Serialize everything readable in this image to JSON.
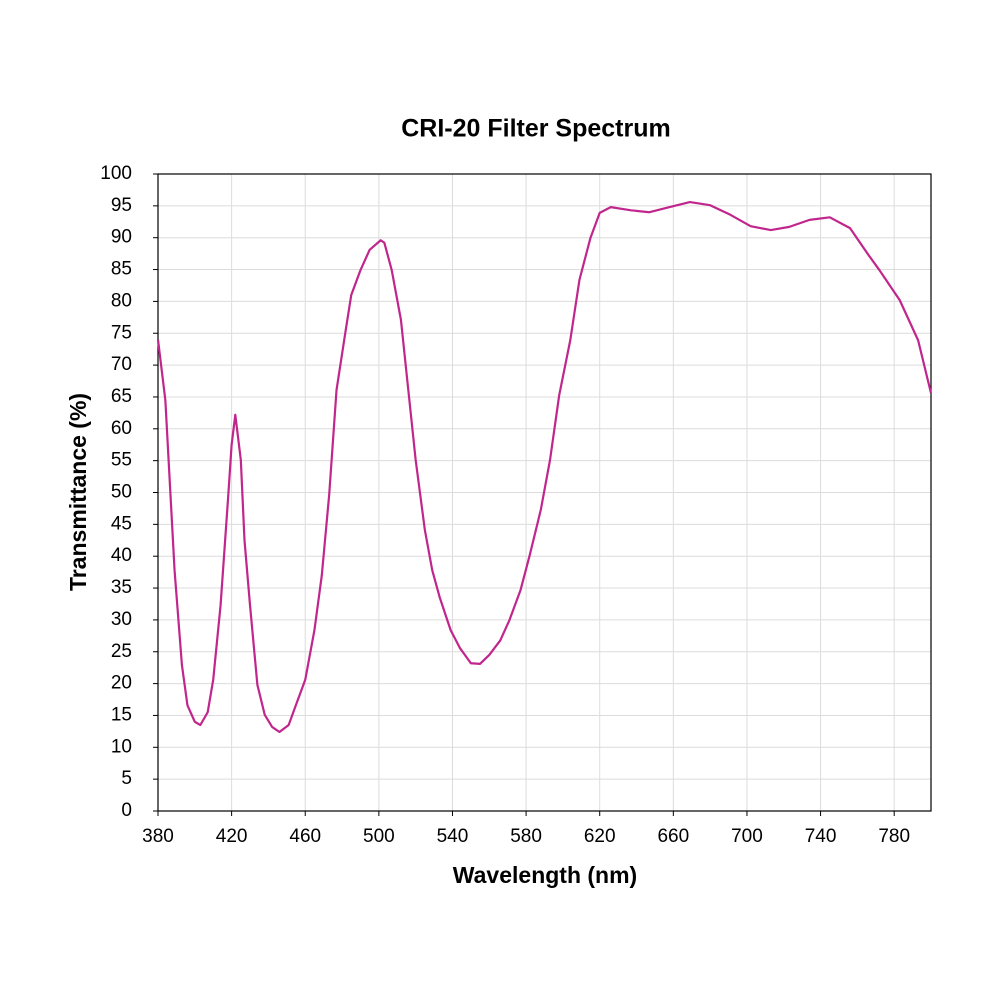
{
  "chart_data": {
    "type": "line",
    "title": "CRI-20 Filter Spectrum",
    "xlabel": "Wavelength (nm)",
    "ylabel": "Transmittance (%)",
    "xlim": [
      380,
      800
    ],
    "ylim": [
      0,
      100
    ],
    "xticks": [
      380,
      420,
      460,
      500,
      540,
      580,
      620,
      660,
      700,
      740,
      780
    ],
    "yticks": [
      0,
      5,
      10,
      15,
      20,
      25,
      30,
      35,
      40,
      45,
      50,
      55,
      60,
      65,
      70,
      75,
      80,
      85,
      90,
      95,
      100
    ],
    "grid": true,
    "series": [
      {
        "name": "CRI-20",
        "color": "#c0268c",
        "x": [
          380,
          384,
          389,
          393,
          396,
          400,
          403,
          407,
          410,
          414,
          418,
          420,
          422,
          425,
          427,
          430,
          434,
          438,
          442,
          446,
          451,
          454,
          460,
          465,
          469,
          473,
          477,
          482,
          485,
          490,
          495,
          501,
          503,
          507,
          512,
          516,
          520,
          525,
          529,
          533,
          539,
          544,
          550,
          555,
          560,
          566,
          571,
          577,
          582,
          588,
          593,
          598,
          604,
          609,
          615,
          620,
          626,
          637,
          647,
          658,
          669,
          680,
          691,
          702,
          713,
          723,
          734,
          745,
          756,
          766,
          772,
          783,
          793,
          800
        ],
        "values": [
          74,
          64.5,
          37.8,
          22.9,
          16.6,
          14,
          13.5,
          15.5,
          20.6,
          32.3,
          48.8,
          57.5,
          62.2,
          55.1,
          42.5,
          32.3,
          19.8,
          15.1,
          13.2,
          12.4,
          13.5,
          15.9,
          20.6,
          28.4,
          37,
          49.6,
          66.1,
          75.5,
          81,
          84.9,
          88.1,
          89.6,
          89.2,
          84.9,
          77.1,
          66.1,
          55.1,
          44.1,
          37.8,
          33.6,
          28.4,
          25.6,
          23.2,
          23.1,
          24.5,
          26.8,
          30,
          34.7,
          40.2,
          47.3,
          55.1,
          65.3,
          73.9,
          83.4,
          90,
          93.9,
          94.8,
          94.3,
          94,
          94.8,
          95.6,
          95.1,
          93.6,
          91.8,
          91.2,
          91.7,
          92.8,
          93.2,
          91.5,
          87.3,
          84.9,
          80.2,
          73.9,
          65.6
        ]
      }
    ]
  }
}
